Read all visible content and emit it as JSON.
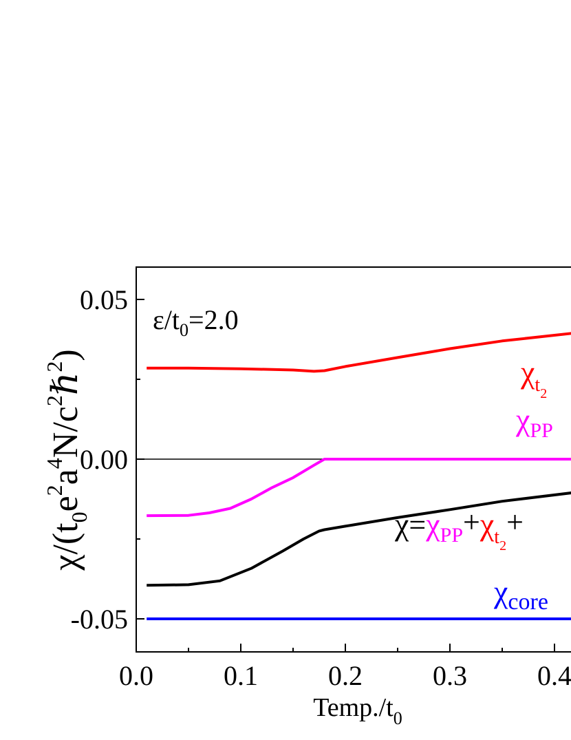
{
  "chart_data": {
    "type": "line",
    "xlabel": "Temp./t",
    "xlabel_sub": "0",
    "ylabel_parts": [
      "χ/(t",
      "0",
      "e",
      "2",
      "a",
      "4",
      "N/c",
      "2",
      "ℏ",
      "2",
      ")"
    ],
    "xlim": [
      0,
      0.5
    ],
    "ylim": [
      -0.06,
      0.06
    ],
    "x_ticks": [
      "0.0",
      "0.1",
      "0.2",
      "0.3",
      "0.4"
    ],
    "y_ticks": [
      "-0.05",
      "0.00",
      "0.05"
    ],
    "grid": false,
    "annotation": {
      "main": "ε/t",
      "sub": "0",
      "rest": "=2.0"
    },
    "zero_line": true,
    "series": [
      {
        "name": "χ_t2",
        "color": "#ff0000",
        "x": [
          0.01,
          0.05,
          0.1,
          0.15,
          0.17,
          0.18,
          0.2,
          0.25,
          0.3,
          0.35,
          0.42
        ],
        "y": [
          0.0285,
          0.0285,
          0.0283,
          0.0279,
          0.0275,
          0.0277,
          0.029,
          0.0318,
          0.0346,
          0.037,
          0.0395
        ]
      },
      {
        "name": "χ_PP",
        "color": "#ff00ff",
        "x": [
          0.01,
          0.05,
          0.07,
          0.09,
          0.11,
          0.13,
          0.15,
          0.17,
          0.18,
          0.25,
          0.3,
          0.42
        ],
        "y": [
          -0.0177,
          -0.0176,
          -0.0168,
          -0.0154,
          -0.0125,
          -0.0089,
          -0.0058,
          -0.0019,
          0,
          0,
          0,
          0
        ]
      },
      {
        "name": "χ=χPP+χt2+",
        "color": "#000000",
        "x": [
          0.01,
          0.05,
          0.08,
          0.11,
          0.14,
          0.16,
          0.175,
          0.18,
          0.2,
          0.25,
          0.3,
          0.35,
          0.42
        ],
        "y": [
          -0.0395,
          -0.0393,
          -0.0381,
          -0.0342,
          -0.0288,
          -0.025,
          -0.0225,
          -0.0221,
          -0.021,
          -0.0183,
          -0.0158,
          -0.0132,
          -0.0104
        ]
      },
      {
        "name": "χ_core",
        "color": "#0000ff",
        "x": [
          0.01,
          0.42
        ],
        "y": [
          -0.05,
          -0.05
        ]
      }
    ],
    "labels": {
      "t2": {
        "chi": "χ",
        "sub": "t",
        "subsub": "2"
      },
      "pp": {
        "chi": "χ",
        "sub": "PP"
      },
      "sum": {
        "chi": "χ",
        "eq": "=",
        "pp_chi": "χ",
        "pp_sub": "PP",
        "plus": "+",
        "t2_chi": "χ",
        "t2_sub": "t",
        "t2_subsub": "2",
        "plus2": "+"
      },
      "core": {
        "chi": "χ",
        "sub": "core"
      }
    }
  }
}
